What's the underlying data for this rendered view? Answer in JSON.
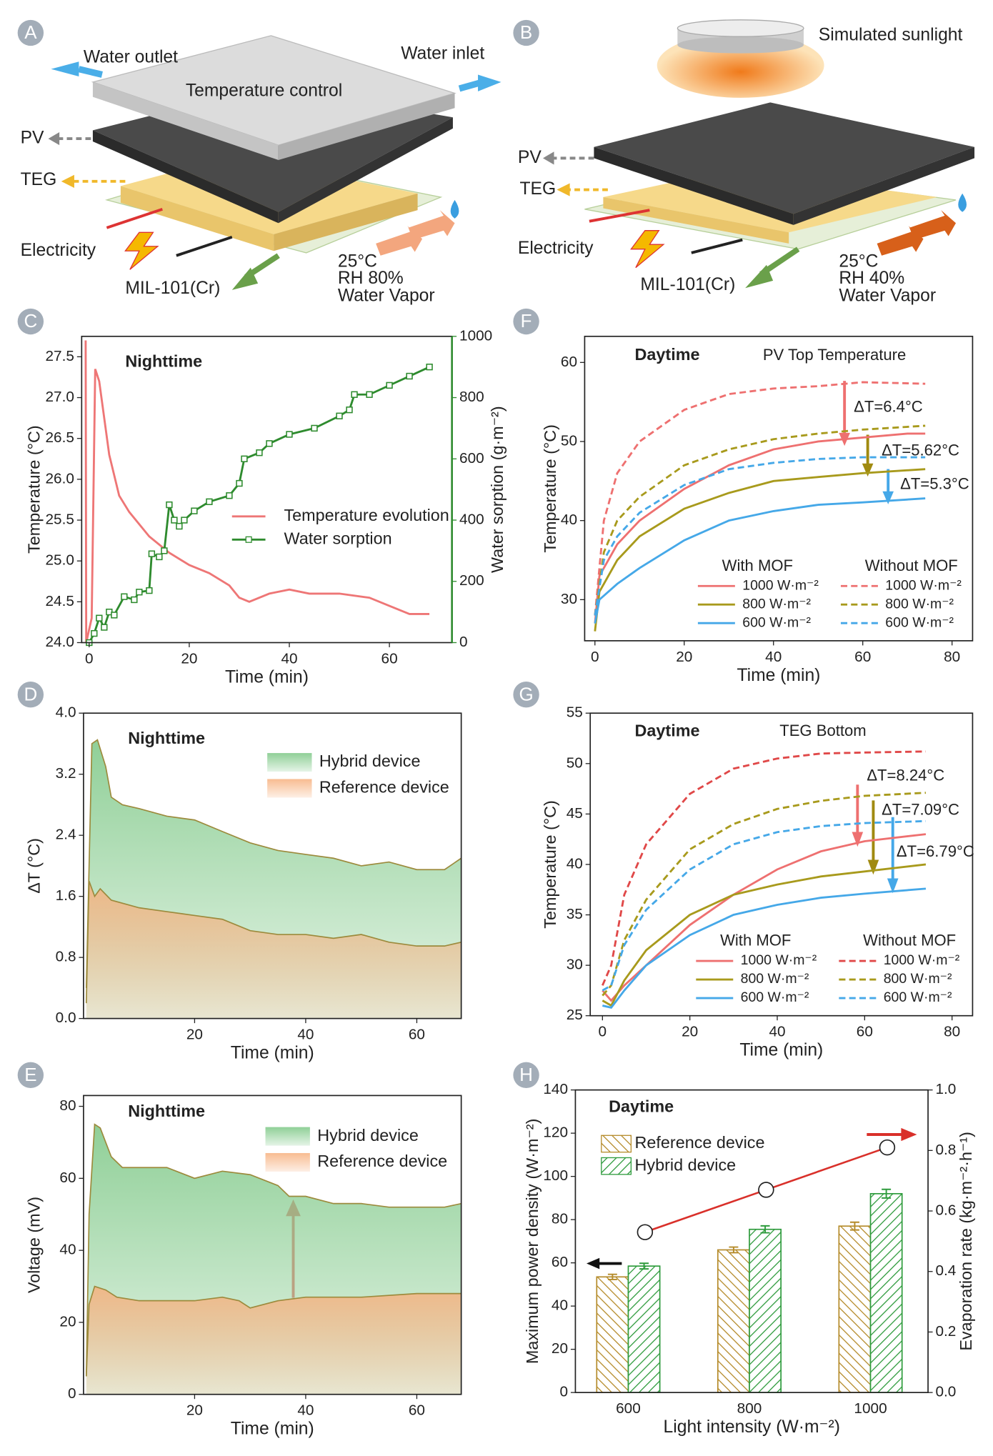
{
  "diagrams": [
    {
      "panel": "A",
      "labels": [
        "Water outlet",
        "Water inlet",
        "Temperature control",
        "PV",
        "TEG",
        "Electricity",
        "MIL-101(Cr)",
        "25°C",
        "RH 80%",
        "Water Vapor"
      ]
    },
    {
      "panel": "B",
      "labels": [
        "Simulated sunlight",
        "PV",
        "TEG",
        "Electricity",
        "MIL-101(Cr)",
        "25°C",
        "RH 40%",
        "Water Vapor"
      ]
    }
  ],
  "chart_data": [
    {
      "type": "line",
      "panel": "C",
      "annotations": [
        "Nighttime"
      ],
      "xlabel": "Time (min)",
      "ylabel": "Temperature (°C)",
      "y2label": "Water sorption (g·m⁻²)",
      "xlim": [
        -1.5,
        72.5
      ],
      "xticks": [
        0,
        20,
        40,
        60
      ],
      "ylim": [
        24.0,
        27.75
      ],
      "yticks": [
        {
          "value": 24,
          "label": "24.0"
        },
        24.5,
        {
          "value": 25,
          "label": "25.0"
        },
        25.5,
        {
          "value": 26,
          "label": "26.0"
        },
        26.5,
        {
          "value": 27,
          "label": "27.0"
        },
        27.5
      ],
      "y2lim": [
        0,
        1000
      ],
      "y2ticks": [
        0,
        200,
        400,
        600,
        800,
        1000
      ],
      "y2_axis_color": "#2e8b2e",
      "series": [
        {
          "name": "Temperature evolution",
          "color": "#ee7676",
          "x": [
            -0.7,
            -0.6,
            0.5,
            1.2,
            2,
            4,
            6,
            8,
            12,
            16,
            20,
            24,
            28,
            30,
            32,
            36,
            40,
            44,
            50,
            56,
            60,
            64,
            68
          ],
          "values": [
            27.7,
            24.0,
            24.3,
            27.35,
            27.2,
            26.3,
            25.8,
            25.6,
            25.3,
            25.1,
            24.95,
            24.85,
            24.7,
            24.55,
            24.5,
            24.6,
            24.65,
            24.6,
            24.6,
            24.55,
            24.45,
            24.35,
            24.35
          ]
        },
        {
          "name": "Water sorption",
          "color": "#2e8b2e",
          "axis": "y2",
          "marker": "square",
          "x": [
            0,
            1,
            2,
            3,
            4,
            5,
            7,
            9,
            10,
            12,
            12.5,
            14,
            15,
            16,
            17,
            18,
            19,
            21,
            24,
            28,
            30,
            31,
            34,
            36,
            40,
            45,
            50,
            52,
            53,
            56,
            60,
            64,
            68
          ],
          "values": [
            0,
            30,
            80,
            50,
            100,
            90,
            150,
            140,
            165,
            170,
            290,
            280,
            300,
            450,
            400,
            380,
            400,
            430,
            460,
            480,
            520,
            600,
            620,
            650,
            680,
            700,
            740,
            760,
            810,
            810,
            840,
            870,
            900
          ]
        }
      ]
    },
    {
      "type": "area",
      "panel": "D",
      "annotations": [
        "Nighttime"
      ],
      "xlabel": "Time (min)",
      "ylabel": "ΔT (°C)",
      "edge_color": "#9c8a3c",
      "xlim": [
        0,
        68
      ],
      "xticks": [
        20,
        40,
        60
      ],
      "ylim": [
        0,
        4
      ],
      "yticks": [
        {
          "value": 0,
          "label": "0.0"
        },
        0.8,
        1.6,
        2.4,
        3.2,
        {
          "value": 4,
          "label": "4.0"
        }
      ],
      "series": [
        {
          "name": "Hybrid device",
          "color": "#7cc785",
          "x": [
            0.5,
            1,
            1.5,
            2.5,
            4,
            5,
            7,
            10,
            15,
            20,
            25,
            30,
            35,
            40,
            45,
            50,
            55,
            60,
            65,
            68
          ],
          "values": [
            0.4,
            2.0,
            3.6,
            3.65,
            3.3,
            2.9,
            2.8,
            2.75,
            2.65,
            2.6,
            2.45,
            2.3,
            2.2,
            2.15,
            2.1,
            2.0,
            2.05,
            1.95,
            1.95,
            2.1
          ]
        },
        {
          "name": "Reference device",
          "color": "#f7b07e",
          "x": [
            0.5,
            1,
            2,
            3,
            5,
            10,
            15,
            20,
            25,
            30,
            35,
            40,
            45,
            50,
            55,
            60,
            65,
            68
          ],
          "values": [
            0.2,
            1.8,
            1.6,
            1.7,
            1.55,
            1.45,
            1.4,
            1.35,
            1.3,
            1.15,
            1.1,
            1.1,
            1.05,
            1.1,
            1.0,
            0.95,
            0.95,
            1.0
          ]
        }
      ]
    },
    {
      "type": "area",
      "panel": "E",
      "annotations": [
        "Nighttime"
      ],
      "xlabel": "Time (min)",
      "ylabel": "Voltage (mV)",
      "edge_color": "#9c8a3c",
      "xlim": [
        0,
        68
      ],
      "xticks": [
        20,
        40,
        60
      ],
      "ylim": [
        0,
        83
      ],
      "yticks": [
        0,
        20,
        40,
        60,
        80
      ],
      "series": [
        {
          "name": "Hybrid device",
          "color": "#7cc785",
          "x": [
            0.5,
            1,
            2,
            3,
            4,
            5,
            7,
            15,
            20,
            25,
            30,
            35,
            37,
            40,
            45,
            50,
            55,
            60,
            65,
            68
          ],
          "values": [
            5,
            50,
            75,
            74,
            70,
            66,
            63,
            63,
            60,
            62,
            61,
            58,
            55,
            55,
            53,
            53,
            52,
            52,
            52,
            53
          ]
        },
        {
          "name": "Reference device",
          "color": "#f7b07e",
          "x": [
            0.5,
            1,
            2,
            4,
            6,
            10,
            20,
            25,
            28,
            30,
            35,
            40,
            50,
            60,
            68
          ],
          "values": [
            5,
            25,
            30,
            29,
            27,
            26,
            26,
            27,
            26,
            24,
            26,
            27,
            27,
            28,
            28
          ]
        }
      ]
    },
    {
      "type": "line",
      "panel": "F",
      "annotations": [
        "Daytime",
        "PV Top Temperature",
        "ΔT=6.4°C",
        "ΔT=5.62°C",
        "ΔT=5.3°C"
      ],
      "xlabel": "Time (min)",
      "ylabel": "Temperature (°C)",
      "xlim": [
        -2.3,
        84.6
      ],
      "xticks": [
        0,
        20,
        40,
        60,
        80
      ],
      "ylim": [
        24.8,
        63.3
      ],
      "yticks": [
        30,
        40,
        50,
        60
      ],
      "legend_groups": [
        "With MOF",
        "Without MOF"
      ],
      "series": [
        {
          "name": "1000 W·m⁻²",
          "color": "#ee7070",
          "dashed": false,
          "x": [
            0,
            1,
            5,
            10,
            20,
            30,
            40,
            50,
            60,
            70,
            74
          ],
          "values": [
            27,
            33,
            37,
            40,
            44,
            47,
            49,
            50,
            50.5,
            51,
            51
          ]
        },
        {
          "name": "800 W·m⁻²",
          "color": "#a89a1c",
          "dashed": false,
          "x": [
            0,
            1,
            5,
            10,
            20,
            30,
            40,
            50,
            60,
            74
          ],
          "values": [
            26,
            31,
            35,
            38,
            41.5,
            43.5,
            45,
            45.5,
            46,
            46.5
          ]
        },
        {
          "name": "600 W·m⁻²",
          "color": "#45a8e8",
          "dashed": false,
          "x": [
            0,
            1,
            5,
            10,
            20,
            30,
            40,
            50,
            60,
            74
          ],
          "values": [
            27,
            30,
            32,
            34,
            37.5,
            40,
            41.2,
            42,
            42.3,
            42.8
          ]
        },
        {
          "name": "1000 W·m⁻²",
          "color": "#ee7070",
          "dashed": true,
          "x": [
            0,
            2,
            5,
            10,
            20,
            30,
            40,
            50,
            60,
            74
          ],
          "values": [
            28,
            40,
            46,
            50,
            54,
            56,
            56.7,
            57,
            57.5,
            57.3
          ]
        },
        {
          "name": "800 W·m⁻²",
          "color": "#a89a1c",
          "dashed": true,
          "x": [
            0,
            2,
            5,
            10,
            20,
            30,
            40,
            50,
            60,
            74
          ],
          "values": [
            28,
            36,
            40,
            43,
            47,
            49,
            50.3,
            51,
            51.5,
            52
          ]
        },
        {
          "name": "600 W·m⁻²",
          "color": "#45a8e8",
          "dashed": true,
          "x": [
            0,
            2,
            5,
            10,
            20,
            30,
            40,
            50,
            60,
            74
          ],
          "values": [
            28,
            35,
            38,
            41,
            44.5,
            46.5,
            47.3,
            47.8,
            48,
            48
          ]
        }
      ]
    },
    {
      "type": "line",
      "panel": "G",
      "annotations": [
        "Daytime",
        "TEG Bottom",
        "ΔT=8.24°C",
        "ΔT=7.09°C",
        "ΔT=6.79°C"
      ],
      "xlabel": "Time (min)",
      "ylabel": "Temperature (°C)",
      "xlim": [
        -2.8,
        84.7
      ],
      "xticks": [
        0,
        20,
        40,
        60,
        80
      ],
      "ylim": [
        25,
        55
      ],
      "yticks": [
        25,
        30,
        35,
        40,
        45,
        50,
        55
      ],
      "legend_groups": [
        "With MOF",
        "Without MOF"
      ],
      "series": [
        {
          "name": "1000 W·m⁻²",
          "color": "#ee7070",
          "dashed": false,
          "x": [
            0,
            1,
            2,
            5,
            10,
            20,
            30,
            40,
            50,
            60,
            74
          ],
          "values": [
            27.5,
            27,
            26.5,
            28,
            30,
            34,
            37,
            39.5,
            41.3,
            42.3,
            43
          ]
        },
        {
          "name": "800 W·m⁻²",
          "color": "#a89a1c",
          "dashed": false,
          "x": [
            0,
            2,
            5,
            10,
            20,
            30,
            40,
            50,
            60,
            74
          ],
          "values": [
            26.5,
            26,
            28.5,
            31.5,
            35,
            37,
            38,
            38.8,
            39.3,
            40
          ]
        },
        {
          "name": "600 W·m⁻²",
          "color": "#45a8e8",
          "dashed": false,
          "x": [
            0,
            2,
            5,
            10,
            20,
            30,
            40,
            50,
            60,
            74
          ],
          "values": [
            26,
            25.8,
            27.5,
            30,
            33,
            35,
            36,
            36.7,
            37.1,
            37.6
          ]
        },
        {
          "name": "1000 W·m⁻²",
          "color": "#e04848",
          "dashed": true,
          "x": [
            0,
            2,
            5,
            10,
            20,
            30,
            40,
            50,
            60,
            74
          ],
          "values": [
            28,
            30,
            37,
            42,
            47,
            49.5,
            50.5,
            51,
            51.1,
            51.2
          ]
        },
        {
          "name": "800 W·m⁻²",
          "color": "#a89a1c",
          "dashed": true,
          "x": [
            0,
            2,
            5,
            10,
            20,
            30,
            40,
            50,
            60,
            74
          ],
          "values": [
            27,
            28,
            32.5,
            36.5,
            41.5,
            44,
            45.5,
            46.3,
            46.8,
            47.1
          ]
        },
        {
          "name": "600 W·m⁻²",
          "color": "#45a8e8",
          "dashed": true,
          "x": [
            0,
            2,
            5,
            10,
            20,
            30,
            40,
            50,
            60,
            74
          ],
          "values": [
            27.5,
            28,
            32,
            35.5,
            39.5,
            42,
            43.2,
            43.8,
            44.1,
            44.3
          ]
        }
      ]
    },
    {
      "type": "bar",
      "panel": "H",
      "annotations": [
        "Daytime"
      ],
      "xlabel": "Light intensity (W·m⁻²)",
      "ylabel": "Maximum power density (W·m⁻²)",
      "y2label": "Evaporation rate (kg·m⁻²·h⁻¹)",
      "categories": [
        "600",
        "800",
        "1000"
      ],
      "ylim": [
        0,
        140
      ],
      "yticks": [
        0,
        20,
        40,
        60,
        80,
        100,
        120,
        140
      ],
      "y2lim": [
        0,
        1
      ],
      "y2ticks": [
        {
          "value": 0,
          "label": "0.0"
        },
        0.2,
        0.4,
        0.6,
        0.8,
        {
          "value": 1,
          "label": "1.0"
        }
      ],
      "series": [
        {
          "name": "Reference device",
          "color": "#b58b2a",
          "values": [
            53.5,
            66,
            77
          ],
          "errors": [
            1.2,
            1.3,
            1.8
          ]
        },
        {
          "name": "Hybrid device",
          "color": "#2e9b3c",
          "values": [
            58.5,
            75.5,
            92
          ],
          "errors": [
            1.3,
            1.6,
            2
          ]
        },
        {
          "color": "#d9302a",
          "axis": "y2",
          "values": [
            0.53,
            0.67,
            0.81
          ]
        }
      ]
    }
  ]
}
